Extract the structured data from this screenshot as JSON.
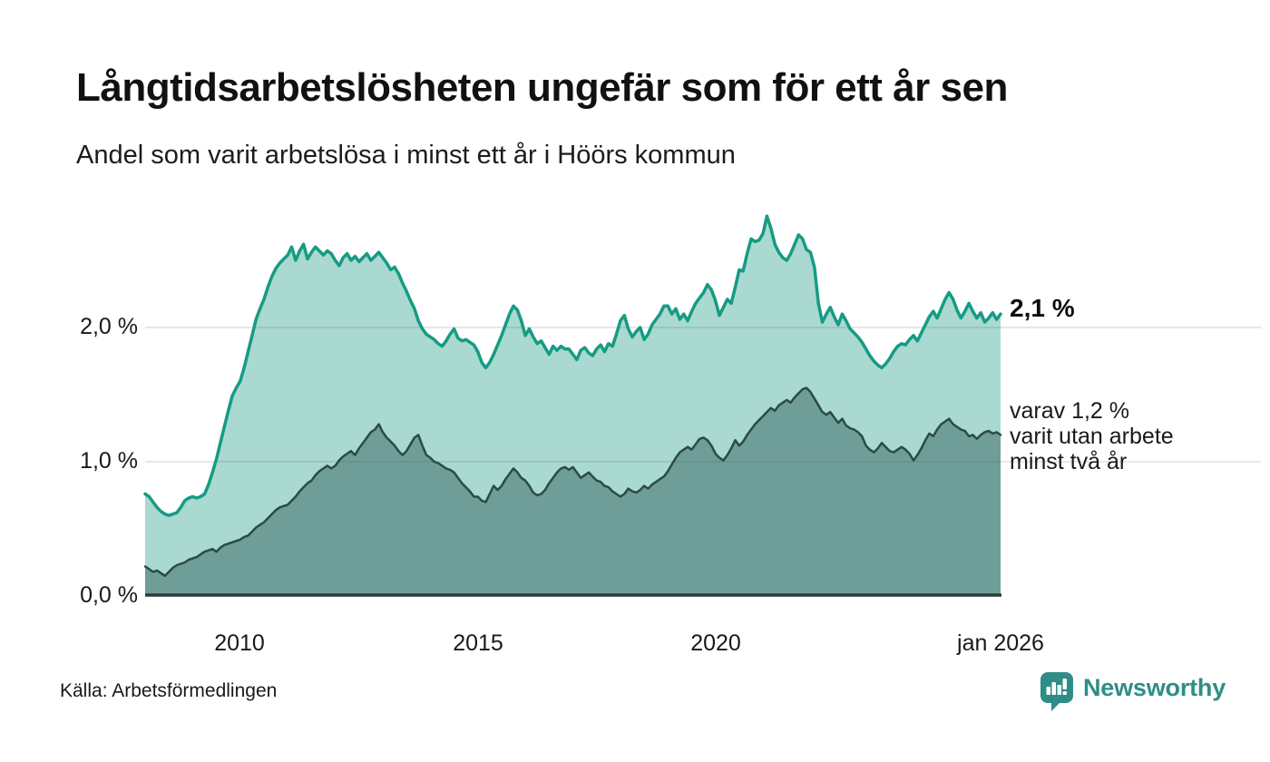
{
  "title": "Långtidsarbetslösheten ungefär som för ett år sen",
  "subtitle": "Andel som varit arbetslösa i minst ett år i Höörs kommun",
  "source": "Källa: Arbetsförmedlingen",
  "branding": {
    "name": "Newsworthy",
    "color": "#2E8E86"
  },
  "labels": {
    "latest_total": "2,1 %",
    "secondary_lines": [
      "varav 1,2 %",
      "varit utan arbete",
      "minst två år"
    ]
  },
  "colors": {
    "line_total": "#169B84",
    "fill_total": "#A9D9D0",
    "line_two_year": "#2C4A47",
    "fill_two_year": "#6F9D98",
    "axis": "#2E3B3A",
    "grid": "rgba(80,80,80,0.18)"
  },
  "chart_data": {
    "type": "area",
    "title": "Långtidsarbetslösheten ungefär som för ett år sen",
    "subtitle": "Andel som varit arbetslösa i minst ett år i Höörs kommun",
    "unit": "%",
    "frequency": "monthly",
    "x_start": "2008-01",
    "x_end": "2026-01",
    "x_tick_labels": [
      "2010",
      "2015",
      "2020",
      "jan 2026"
    ],
    "y_tick_labels": [
      "0,0 %",
      "1,0 %",
      "2,0 %"
    ],
    "ylim": [
      0,
      2.95
    ],
    "grid_values": [
      1.0,
      2.0
    ],
    "legend_position": "right-annotations",
    "series": [
      {
        "name": "Andel arbetslösa minst ett år",
        "latest_value": 2.1,
        "latest_label": "2,1 %",
        "color": "#169B84",
        "fill": "#A9D9D0",
        "values": [
          0.76,
          0.74,
          0.7,
          0.66,
          0.63,
          0.61,
          0.6,
          0.61,
          0.62,
          0.66,
          0.71,
          0.73,
          0.74,
          0.73,
          0.74,
          0.76,
          0.83,
          0.92,
          1.02,
          1.14,
          1.26,
          1.38,
          1.49,
          1.55,
          1.6,
          1.7,
          1.82,
          1.94,
          2.06,
          2.14,
          2.21,
          2.3,
          2.38,
          2.44,
          2.48,
          2.51,
          2.54,
          2.6,
          2.5,
          2.57,
          2.62,
          2.51,
          2.56,
          2.6,
          2.57,
          2.54,
          2.57,
          2.55,
          2.5,
          2.46,
          2.52,
          2.55,
          2.5,
          2.53,
          2.49,
          2.52,
          2.55,
          2.5,
          2.53,
          2.56,
          2.52,
          2.48,
          2.43,
          2.45,
          2.4,
          2.33,
          2.27,
          2.2,
          2.14,
          2.05,
          1.99,
          1.95,
          1.93,
          1.91,
          1.88,
          1.86,
          1.9,
          1.95,
          1.99,
          1.92,
          1.9,
          1.91,
          1.89,
          1.87,
          1.82,
          1.74,
          1.7,
          1.74,
          1.8,
          1.87,
          1.94,
          2.02,
          2.1,
          2.16,
          2.13,
          2.05,
          1.94,
          1.99,
          1.93,
          1.88,
          1.9,
          1.85,
          1.8,
          1.86,
          1.83,
          1.86,
          1.84,
          1.84,
          1.8,
          1.76,
          1.83,
          1.85,
          1.81,
          1.79,
          1.84,
          1.87,
          1.82,
          1.88,
          1.86,
          1.95,
          2.05,
          2.09,
          1.99,
          1.93,
          1.97,
          2.0,
          1.91,
          1.95,
          2.02,
          2.06,
          2.1,
          2.16,
          2.16,
          2.1,
          2.14,
          2.06,
          2.1,
          2.05,
          2.12,
          2.18,
          2.22,
          2.26,
          2.32,
          2.28,
          2.2,
          2.09,
          2.15,
          2.21,
          2.18,
          2.3,
          2.43,
          2.42,
          2.55,
          2.66,
          2.64,
          2.65,
          2.7,
          2.83,
          2.74,
          2.62,
          2.56,
          2.52,
          2.5,
          2.55,
          2.62,
          2.69,
          2.66,
          2.58,
          2.56,
          2.45,
          2.18,
          2.04,
          2.1,
          2.15,
          2.08,
          2.02,
          2.1,
          2.05,
          1.99,
          1.96,
          1.93,
          1.89,
          1.84,
          1.79,
          1.75,
          1.72,
          1.7,
          1.73,
          1.77,
          1.82,
          1.86,
          1.88,
          1.87,
          1.91,
          1.94,
          1.9,
          1.96,
          2.02,
          2.08,
          2.12,
          2.07,
          2.14,
          2.21,
          2.26,
          2.21,
          2.13,
          2.07,
          2.12,
          2.18,
          2.12,
          2.07,
          2.11,
          2.04,
          2.07,
          2.11,
          2.06,
          2.1
        ]
      },
      {
        "name": "varav utan arbete minst två år",
        "latest_value": 1.2,
        "latest_label": "varav 1,2 % varit utan arbete minst två år",
        "color": "#2C4A47",
        "fill": "#6F9D98",
        "values": [
          0.22,
          0.2,
          0.18,
          0.19,
          0.17,
          0.15,
          0.18,
          0.21,
          0.23,
          0.24,
          0.25,
          0.27,
          0.28,
          0.29,
          0.31,
          0.33,
          0.34,
          0.35,
          0.33,
          0.36,
          0.38,
          0.39,
          0.4,
          0.41,
          0.42,
          0.44,
          0.45,
          0.48,
          0.51,
          0.53,
          0.55,
          0.58,
          0.61,
          0.64,
          0.66,
          0.67,
          0.68,
          0.71,
          0.74,
          0.78,
          0.81,
          0.84,
          0.86,
          0.9,
          0.93,
          0.95,
          0.97,
          0.95,
          0.97,
          1.01,
          1.04,
          1.06,
          1.08,
          1.05,
          1.1,
          1.14,
          1.18,
          1.22,
          1.24,
          1.28,
          1.22,
          1.18,
          1.15,
          1.12,
          1.08,
          1.05,
          1.08,
          1.13,
          1.18,
          1.2,
          1.12,
          1.05,
          1.03,
          1.0,
          0.99,
          0.97,
          0.95,
          0.94,
          0.92,
          0.88,
          0.84,
          0.81,
          0.78,
          0.74,
          0.74,
          0.71,
          0.7,
          0.76,
          0.82,
          0.79,
          0.82,
          0.87,
          0.91,
          0.95,
          0.92,
          0.88,
          0.86,
          0.82,
          0.77,
          0.75,
          0.76,
          0.79,
          0.84,
          0.88,
          0.92,
          0.95,
          0.96,
          0.94,
          0.96,
          0.92,
          0.88,
          0.9,
          0.92,
          0.89,
          0.86,
          0.85,
          0.82,
          0.81,
          0.78,
          0.76,
          0.74,
          0.76,
          0.8,
          0.78,
          0.77,
          0.79,
          0.82,
          0.8,
          0.83,
          0.85,
          0.87,
          0.89,
          0.93,
          0.98,
          1.03,
          1.07,
          1.09,
          1.11,
          1.09,
          1.13,
          1.17,
          1.18,
          1.16,
          1.12,
          1.06,
          1.03,
          1.01,
          1.05,
          1.1,
          1.16,
          1.12,
          1.15,
          1.2,
          1.24,
          1.28,
          1.31,
          1.34,
          1.37,
          1.4,
          1.38,
          1.42,
          1.44,
          1.46,
          1.44,
          1.48,
          1.51,
          1.54,
          1.55,
          1.52,
          1.47,
          1.42,
          1.37,
          1.35,
          1.37,
          1.33,
          1.29,
          1.32,
          1.27,
          1.25,
          1.24,
          1.22,
          1.19,
          1.12,
          1.09,
          1.07,
          1.1,
          1.14,
          1.11,
          1.08,
          1.07,
          1.09,
          1.11,
          1.09,
          1.06,
          1.01,
          1.05,
          1.1,
          1.16,
          1.21,
          1.19,
          1.24,
          1.28,
          1.3,
          1.32,
          1.28,
          1.26,
          1.24,
          1.23,
          1.19,
          1.2,
          1.17,
          1.2,
          1.22,
          1.23,
          1.21,
          1.22,
          1.2
        ]
      }
    ]
  }
}
